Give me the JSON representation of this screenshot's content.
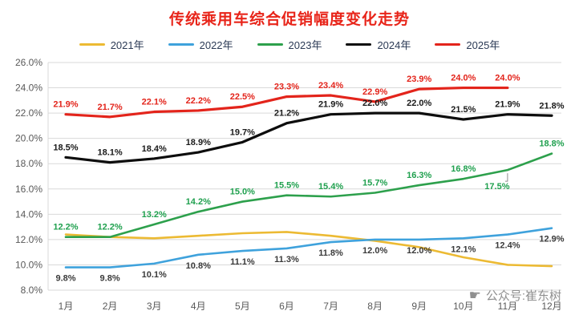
{
  "chart_data": {
    "type": "line",
    "title": "传统乘用车综合促销幅度变化走势",
    "categories": [
      "1月",
      "2月",
      "3月",
      "4月",
      "5月",
      "6月",
      "7月",
      "8月",
      "9月",
      "10月",
      "11月",
      "12月"
    ],
    "y_ticks": [
      "8.0%",
      "10.0%",
      "12.0%",
      "14.0%",
      "16.0%",
      "18.0%",
      "20.0%",
      "22.0%",
      "24.0%",
      "26.0%"
    ],
    "ylim": [
      8,
      26
    ],
    "grid": "horizontal",
    "legend_position": "top",
    "series": [
      {
        "name": "2021年",
        "color": "#ecba33",
        "width": 2.6,
        "values": [
          12.4,
          12.2,
          12.1,
          12.3,
          12.5,
          12.6,
          12.3,
          11.9,
          11.4,
          10.6,
          10.0,
          9.9
        ],
        "labels": null,
        "label_color": null,
        "label_side": "above"
      },
      {
        "name": "2022年",
        "color": "#3fa2dc",
        "width": 2.6,
        "values": [
          9.8,
          9.8,
          10.1,
          10.8,
          11.1,
          11.3,
          11.8,
          12.0,
          12.0,
          12.1,
          12.4,
          12.9
        ],
        "labels": [
          "9.8%",
          "9.8%",
          "10.1%",
          "10.8%",
          "11.1%",
          "11.3%",
          "11.8%",
          "12.0%",
          "12.0%",
          "12.1%",
          "12.4%",
          "12.9%"
        ],
        "label_color": "#3a3a3a",
        "label_side": "below"
      },
      {
        "name": "2023年",
        "color": "#2da04c",
        "width": 2.6,
        "values": [
          12.2,
          12.2,
          13.2,
          14.2,
          15.0,
          15.5,
          15.4,
          15.7,
          16.3,
          16.8,
          17.5,
          18.8
        ],
        "labels": [
          "12.2%",
          "12.2%",
          "13.2%",
          "14.2%",
          "15.0%",
          "15.5%",
          "15.4%",
          "15.7%",
          "16.3%",
          "16.8%",
          "17.5%",
          "18.8%"
        ],
        "label_color": "#1fa04e",
        "label_side": "above",
        "label_overrides": {
          "10": {
            "dx": -13,
            "dy": 24,
            "leader": true
          }
        }
      },
      {
        "name": "2024年",
        "color": "#0d0d0d",
        "width": 3.2,
        "values": [
          18.5,
          18.1,
          18.4,
          18.9,
          19.7,
          21.2,
          21.9,
          22.0,
          22.0,
          21.5,
          21.9,
          21.8
        ],
        "labels": [
          "18.5%",
          "18.1%",
          "18.4%",
          "18.9%",
          "19.7%",
          "21.2%",
          "21.9%",
          "22.0%",
          "22.0%",
          "21.5%",
          "21.9%",
          "21.8%"
        ],
        "label_color": "#1a1a1a",
        "label_side": "above"
      },
      {
        "name": "2025年",
        "color": "#e3241b",
        "width": 3.2,
        "values": [
          21.9,
          21.7,
          22.1,
          22.2,
          22.5,
          23.3,
          23.4,
          22.9,
          23.9,
          24.0,
          24.0,
          null
        ],
        "labels": [
          "21.9%",
          "21.7%",
          "22.1%",
          "22.2%",
          "22.5%",
          "23.3%",
          "23.4%",
          "22.9%",
          "23.9%",
          "24.0%",
          "24.0%",
          null
        ],
        "label_color": "#e3241b",
        "label_side": "above"
      }
    ]
  },
  "watermark": {
    "icon": "☛",
    "text": "公众号:崔东树"
  }
}
